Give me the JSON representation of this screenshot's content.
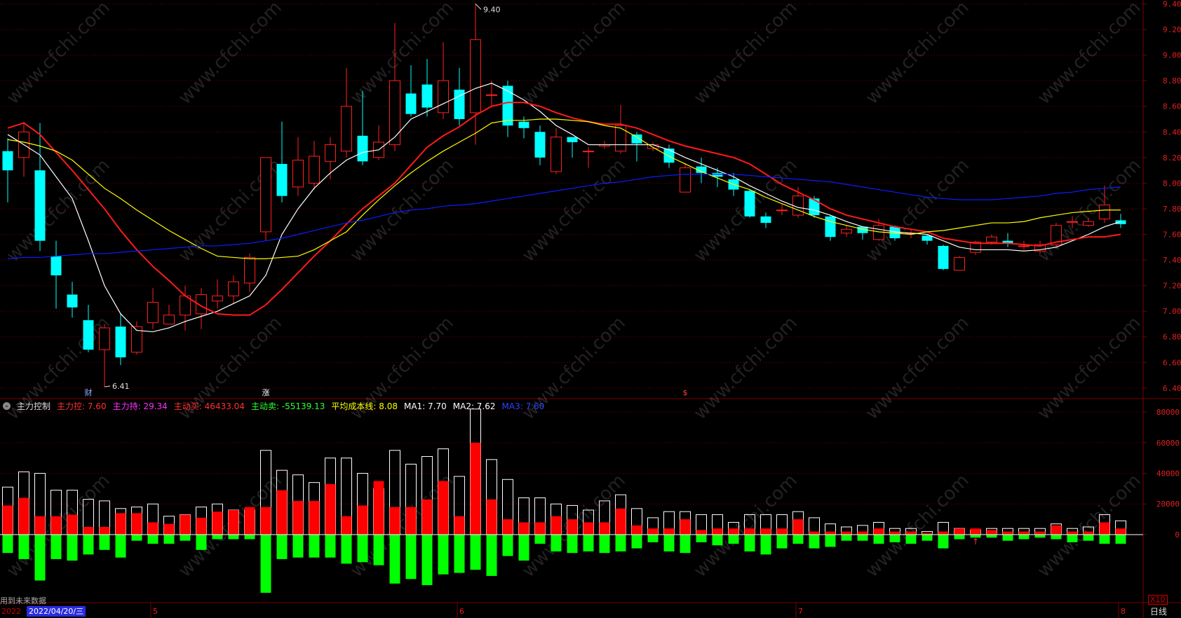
{
  "chart_data": {
    "type": "candlestick",
    "title": "",
    "y_axis_labels": [
      "9.40",
      "9.20",
      "9.00",
      "8.80",
      "8.60",
      "8.40",
      "8.20",
      "8.00",
      "7.80",
      "7.60",
      "7.40",
      "7.20",
      "7.00",
      "6.80",
      "6.60",
      "6.40"
    ],
    "ylim": [
      6.35,
      9.43
    ],
    "high_label": "9.40",
    "low_label": "6.41",
    "event_markers": [
      {
        "index": 5,
        "text": "财",
        "color": "#8fb4ff"
      },
      {
        "index": 16,
        "text": "涨",
        "color": "#ffffff"
      },
      {
        "index": 42,
        "text": "$",
        "color": "#ff4040"
      }
    ],
    "candles": [
      [
        8.25,
        8.1,
        8.35,
        7.85
      ],
      [
        8.2,
        8.4,
        8.48,
        8.05
      ],
      [
        8.1,
        7.55,
        8.47,
        7.47
      ],
      [
        7.43,
        7.28,
        7.55,
        7.02
      ],
      [
        7.13,
        7.03,
        7.23,
        6.95
      ],
      [
        6.93,
        6.7,
        7.05,
        6.68
      ],
      [
        6.7,
        6.87,
        6.9,
        6.41
      ],
      [
        6.88,
        6.64,
        6.98,
        6.58
      ],
      [
        6.68,
        6.88,
        6.92,
        6.66
      ],
      [
        6.91,
        7.07,
        7.18,
        6.86
      ],
      [
        6.9,
        6.97,
        7.05,
        6.9
      ],
      [
        6.97,
        7.12,
        7.2,
        6.85
      ],
      [
        6.98,
        7.13,
        7.18,
        6.86
      ],
      [
        7.08,
        7.12,
        7.25,
        7.02
      ],
      [
        7.12,
        7.23,
        7.28,
        7.06
      ],
      [
        7.22,
        7.42,
        7.45,
        7.15
      ],
      [
        7.62,
        8.2,
        8.2,
        7.55
      ],
      [
        8.15,
        7.9,
        8.48,
        7.85
      ],
      [
        7.97,
        8.18,
        8.36,
        7.9
      ],
      [
        8.0,
        8.21,
        8.33,
        7.95
      ],
      [
        8.17,
        8.3,
        8.36,
        8.03
      ],
      [
        8.25,
        8.6,
        8.9,
        8.2
      ],
      [
        8.37,
        8.17,
        8.72,
        8.14
      ],
      [
        8.2,
        8.32,
        8.45,
        8.18
      ],
      [
        8.3,
        8.8,
        9.25,
        8.25
      ],
      [
        8.7,
        8.54,
        8.92,
        8.52
      ],
      [
        8.77,
        8.59,
        8.97,
        8.52
      ],
      [
        8.55,
        8.8,
        9.1,
        8.5
      ],
      [
        8.73,
        8.5,
        8.9,
        8.45
      ],
      [
        8.55,
        9.12,
        9.4,
        8.3
      ],
      [
        8.69,
        8.69,
        8.8,
        8.6
      ],
      [
        8.76,
        8.45,
        8.8,
        8.36
      ],
      [
        8.48,
        8.43,
        8.52,
        8.35
      ],
      [
        8.4,
        8.2,
        8.45,
        8.14
      ],
      [
        8.09,
        8.36,
        8.43,
        8.07
      ],
      [
        8.36,
        8.32,
        8.36,
        8.2
      ],
      [
        8.25,
        8.25,
        8.28,
        8.12
      ],
      [
        8.29,
        8.3,
        8.33,
        8.27
      ],
      [
        8.25,
        8.45,
        8.61,
        8.23
      ],
      [
        8.38,
        8.31,
        8.4,
        8.17
      ],
      [
        8.27,
        8.3,
        8.32,
        8.25
      ],
      [
        8.27,
        8.16,
        8.3,
        8.12
      ],
      [
        7.93,
        8.12,
        8.16,
        7.93
      ],
      [
        8.13,
        8.08,
        8.2,
        8.0
      ],
      [
        8.08,
        8.05,
        8.12,
        7.97
      ],
      [
        8.03,
        7.95,
        8.08,
        7.9
      ],
      [
        7.94,
        7.74,
        7.95,
        7.73
      ],
      [
        7.74,
        7.69,
        7.77,
        7.65
      ],
      [
        7.79,
        7.79,
        7.84,
        7.75
      ],
      [
        7.75,
        7.9,
        7.97,
        7.73
      ],
      [
        7.88,
        7.75,
        7.9,
        7.73
      ],
      [
        7.74,
        7.58,
        7.75,
        7.55
      ],
      [
        7.61,
        7.64,
        7.67,
        7.58
      ],
      [
        7.66,
        7.61,
        7.66,
        7.56
      ],
      [
        7.56,
        7.67,
        7.72,
        7.55
      ],
      [
        7.66,
        7.57,
        7.67,
        7.55
      ],
      [
        7.61,
        7.61,
        7.64,
        7.57
      ],
      [
        7.59,
        7.55,
        7.6,
        7.52
      ],
      [
        7.51,
        7.33,
        7.52,
        7.32
      ],
      [
        7.32,
        7.42,
        7.43,
        7.32
      ],
      [
        7.46,
        7.54,
        7.55,
        7.44
      ],
      [
        7.54,
        7.58,
        7.6,
        7.52
      ],
      [
        7.55,
        7.53,
        7.61,
        7.5
      ],
      [
        7.51,
        7.51,
        7.55,
        7.48
      ],
      [
        7.47,
        7.52,
        7.55,
        7.45
      ],
      [
        7.52,
        7.67,
        7.69,
        7.5
      ],
      [
        7.7,
        7.7,
        7.74,
        7.65
      ],
      [
        7.67,
        7.7,
        7.73,
        7.66
      ],
      [
        7.72,
        7.83,
        7.98,
        7.69
      ],
      [
        7.71,
        7.68,
        7.76,
        7.65
      ]
    ],
    "ma_lines": [
      {
        "name": "MA1",
        "color": "#ffffff",
        "values": [
          8.38,
          8.3,
          8.22,
          8.05,
          7.88,
          7.55,
          7.2,
          6.98,
          6.85,
          6.84,
          6.87,
          6.92,
          6.96,
          7.0,
          7.06,
          7.12,
          7.28,
          7.6,
          7.8,
          7.96,
          8.08,
          8.18,
          8.24,
          8.26,
          8.36,
          8.5,
          8.56,
          8.62,
          8.68,
          8.74,
          8.78,
          8.72,
          8.65,
          8.56,
          8.45,
          8.38,
          8.3,
          8.3,
          8.3,
          8.3,
          8.3,
          8.26,
          8.2,
          8.15,
          8.1,
          8.05,
          7.98,
          7.92,
          7.86,
          7.81,
          7.79,
          7.75,
          7.7,
          7.66,
          7.64,
          7.62,
          7.61,
          7.6,
          7.55,
          7.5,
          7.48,
          7.48,
          7.48,
          7.47,
          7.48,
          7.5,
          7.55,
          7.6,
          7.66,
          7.7
        ]
      },
      {
        "name": "MA2",
        "color": "#ff1a1a",
        "values": [
          8.43,
          8.47,
          8.38,
          8.24,
          8.1,
          7.95,
          7.8,
          7.63,
          7.48,
          7.35,
          7.24,
          7.12,
          7.04,
          6.98,
          6.97,
          6.97,
          7.05,
          7.17,
          7.3,
          7.43,
          7.55,
          7.68,
          7.8,
          7.9,
          8.0,
          8.14,
          8.28,
          8.37,
          8.44,
          8.53,
          8.6,
          8.63,
          8.63,
          8.6,
          8.55,
          8.51,
          8.48,
          8.46,
          8.46,
          8.43,
          8.38,
          8.33,
          8.29,
          8.26,
          8.23,
          8.2,
          8.15,
          8.07,
          7.99,
          7.93,
          7.87,
          7.8,
          7.75,
          7.72,
          7.69,
          7.66,
          7.64,
          7.62,
          7.57,
          7.55,
          7.53,
          7.53,
          7.53,
          7.52,
          7.51,
          7.54,
          7.56,
          7.58,
          7.58,
          7.6
        ]
      },
      {
        "name": "MA3",
        "color": "#ffff00",
        "values": [
          8.34,
          8.32,
          8.29,
          8.25,
          8.18,
          8.07,
          7.96,
          7.88,
          7.79,
          7.71,
          7.63,
          7.56,
          7.49,
          7.43,
          7.42,
          7.41,
          7.41,
          7.42,
          7.43,
          7.48,
          7.55,
          7.62,
          7.75,
          7.87,
          7.98,
          8.08,
          8.17,
          8.25,
          8.32,
          8.39,
          8.47,
          8.49,
          8.49,
          8.5,
          8.5,
          8.49,
          8.48,
          8.45,
          8.43,
          8.36,
          8.28,
          8.21,
          8.15,
          8.09,
          8.04,
          7.99,
          7.95,
          7.89,
          7.84,
          7.79,
          7.74,
          7.7,
          7.67,
          7.64,
          7.62,
          7.61,
          7.6,
          7.62,
          7.63,
          7.65,
          7.67,
          7.69,
          7.69,
          7.7,
          7.73,
          7.75,
          7.77,
          7.78,
          7.79,
          7.79
        ]
      },
      {
        "name": "MA4",
        "color": "#0d1cff",
        "values": [
          7.41,
          7.42,
          7.42,
          7.43,
          7.44,
          7.45,
          7.45,
          7.46,
          7.47,
          7.48,
          7.49,
          7.5,
          7.51,
          7.51,
          7.52,
          7.53,
          7.55,
          7.57,
          7.6,
          7.63,
          7.66,
          7.69,
          7.71,
          7.74,
          7.77,
          7.79,
          7.8,
          7.82,
          7.83,
          7.84,
          7.86,
          7.88,
          7.9,
          7.92,
          7.94,
          7.96,
          7.98,
          8.0,
          8.01,
          8.03,
          8.05,
          8.06,
          8.07,
          8.07,
          8.07,
          8.07,
          8.06,
          8.05,
          8.04,
          8.03,
          8.02,
          8.01,
          7.99,
          7.97,
          7.95,
          7.93,
          7.91,
          7.89,
          7.88,
          7.87,
          7.87,
          7.87,
          7.88,
          7.89,
          7.9,
          7.92,
          7.93,
          7.95,
          7.96,
          7.97
        ]
      }
    ],
    "x_axis_labels": [
      {
        "index": 9,
        "text": "5"
      },
      {
        "index": 28,
        "text": "6"
      },
      {
        "index": 49,
        "text": "7"
      },
      {
        "index": 69,
        "text": "8"
      }
    ],
    "volume_axis_labels": [
      "80000",
      "60000",
      "40000",
      "20000",
      "0"
    ],
    "volume_ylim": [
      -38000,
      86000
    ],
    "volume_multiplier": "X10",
    "volume": {
      "total": [
        31000,
        41000,
        40000,
        29000,
        29000,
        23000,
        22000,
        17000,
        18000,
        20000,
        12000,
        13000,
        18000,
        20000,
        16000,
        16000,
        55000,
        42000,
        39000,
        34000,
        50000,
        50000,
        40000,
        30000,
        55000,
        46000,
        51000,
        56000,
        38000,
        82000,
        49000,
        36000,
        24000,
        24000,
        20000,
        19000,
        16000,
        22000,
        26000,
        17000,
        11000,
        15000,
        15000,
        13000,
        13000,
        8000,
        13000,
        13000,
        13000,
        15000,
        11000,
        7000,
        5000,
        6000,
        8000,
        4000,
        4000,
        2000,
        8000,
        4000,
        3000,
        4000,
        4000,
        4000,
        4000,
        7000,
        4000,
        5000,
        13000,
        9000
      ],
      "main_buy": [
        19000,
        24000,
        12000,
        12000,
        13000,
        5000,
        5000,
        14000,
        14000,
        8000,
        7000,
        13000,
        11000,
        15000,
        16000,
        18000,
        18000,
        29000,
        22000,
        22000,
        33000,
        12000,
        19000,
        35000,
        18000,
        18000,
        23000,
        35000,
        12000,
        60000,
        23000,
        10000,
        8000,
        8000,
        12000,
        10000,
        8000,
        8000,
        17000,
        6000,
        4000,
        4000,
        10000,
        3000,
        4000,
        4000,
        4000,
        4000,
        4000,
        10000,
        2000,
        2000,
        2000,
        2000,
        4000,
        2000,
        2000,
        1000,
        2000,
        4000,
        4000,
        3000,
        2000,
        2000,
        2000,
        6000,
        2000,
        2000,
        8000,
        4000
      ],
      "main_sell": [
        12000,
        16000,
        30000,
        16000,
        17000,
        13000,
        10000,
        15000,
        4000,
        6000,
        6000,
        4000,
        10000,
        3000,
        3000,
        3000,
        38000,
        16000,
        15000,
        15000,
        15000,
        19000,
        18000,
        20000,
        32000,
        29000,
        33000,
        26000,
        25000,
        23000,
        27000,
        14000,
        17000,
        6000,
        11000,
        12000,
        11000,
        12000,
        11000,
        9000,
        5000,
        11000,
        12000,
        5000,
        7000,
        6000,
        11000,
        13000,
        9000,
        6000,
        9000,
        8000,
        4000,
        4000,
        6000,
        5000,
        6000,
        4000,
        9000,
        3000,
        2000,
        2000,
        4000,
        3000,
        2000,
        3000,
        5000,
        4000,
        6000,
        6000
      ]
    },
    "volume_marker": {
      "index": 60,
      "text": "↑"
    }
  },
  "indicator_header": {
    "name": "主力控制",
    "items": [
      {
        "label": "主力控:",
        "value": "7.60",
        "color": "#ff3030"
      },
      {
        "label": "主力持:",
        "value": "29.34",
        "color": "#ff30ff"
      },
      {
        "label": "主动买:",
        "value": "46433.04",
        "color": "#ff3030"
      },
      {
        "label": "主动卖:",
        "value": "-55139.13",
        "color": "#30ff30"
      },
      {
        "label": "平均成本线:",
        "value": "8.08",
        "color": "#ffff00"
      },
      {
        "label": "MA1:",
        "value": "7.70",
        "color": "#ffffff"
      },
      {
        "label": "MA2:",
        "value": "7.62",
        "color": "#ffffff"
      },
      {
        "label": "MA3:",
        "value": "7.60",
        "color": "#3040ff"
      }
    ]
  },
  "status": {
    "future_data_note": "用到未来数据",
    "date_prefix": "2022",
    "date": "2022/04/20/三",
    "period": "日线"
  },
  "watermark": "www.cfchi.com",
  "colors": {
    "up": "#ff2020",
    "down": "#00ffff",
    "grid": "#7a0000",
    "axis_text": "#e02020",
    "vol_total": "#ffffff",
    "vol_buy": "#ff0000",
    "vol_sell": "#00ff00"
  }
}
